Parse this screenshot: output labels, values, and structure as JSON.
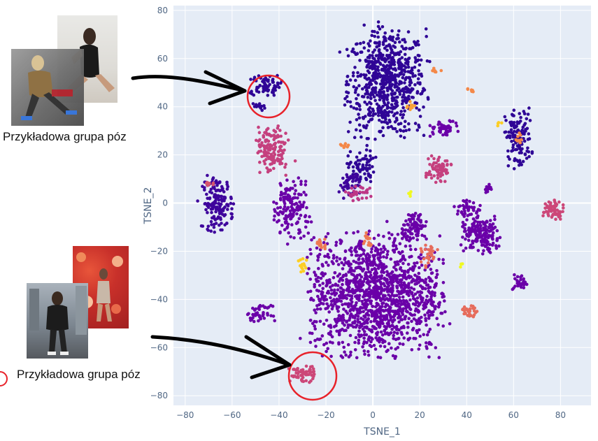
{
  "chart_data": {
    "type": "scatter",
    "title": "",
    "xlabel": "TSNE_1",
    "ylabel": "TSNE_2",
    "xlim": [
      -85,
      93
    ],
    "ylim": [
      -84,
      82
    ],
    "x_ticks": [
      -80,
      -60,
      -40,
      -20,
      0,
      20,
      40,
      60,
      80
    ],
    "y_ticks": [
      -80,
      -60,
      -40,
      -20,
      0,
      20,
      40,
      60,
      80
    ],
    "grid": true,
    "legend": "none",
    "palette": "plasma",
    "clusters": [
      {
        "cx": 6,
        "cy": 50,
        "rx": 15,
        "ry": 20,
        "n": 700,
        "color": "#2f0596"
      },
      {
        "cx": -46,
        "cy": 49,
        "rx": 6,
        "ry": 4,
        "n": 70,
        "color": "#2f0596"
      },
      {
        "cx": -49,
        "cy": 40,
        "rx": 3,
        "ry": 1.5,
        "n": 14,
        "color": "#2f0596"
      },
      {
        "cx": -5,
        "cy": 15,
        "rx": 5,
        "ry": 6,
        "n": 70,
        "color": "#2f0596"
      },
      {
        "cx": 62,
        "cy": 27,
        "rx": 5,
        "ry": 11,
        "n": 130,
        "color": "#2f0596"
      },
      {
        "cx": -66,
        "cy": 0,
        "rx": 6,
        "ry": 10,
        "n": 160,
        "color": "#3e049c"
      },
      {
        "cx": -10,
        "cy": 8,
        "rx": 4,
        "ry": 5,
        "n": 50,
        "color": "#3e049c"
      },
      {
        "cx": -35,
        "cy": -3,
        "rx": 7,
        "ry": 12,
        "n": 150,
        "color": "#6a00a8"
      },
      {
        "cx": 1,
        "cy": -38,
        "rx": 25,
        "ry": 22,
        "n": 1400,
        "color": "#6a00a8"
      },
      {
        "cx": 18,
        "cy": -10,
        "rx": 5,
        "ry": 5,
        "n": 90,
        "color": "#6a00a8"
      },
      {
        "cx": 46,
        "cy": -13,
        "rx": 8,
        "ry": 7,
        "n": 170,
        "color": "#6a00a8"
      },
      {
        "cx": 40,
        "cy": -2,
        "rx": 5,
        "ry": 3,
        "n": 40,
        "color": "#6a00a8"
      },
      {
        "cx": -48,
        "cy": -46,
        "rx": 5,
        "ry": 3,
        "n": 45,
        "color": "#6a00a8"
      },
      {
        "cx": 63,
        "cy": -33,
        "rx": 3,
        "ry": 3,
        "n": 30,
        "color": "#6a00a8"
      },
      {
        "cx": 30,
        "cy": 31,
        "rx": 6,
        "ry": 3,
        "n": 45,
        "color": "#6a00a8"
      },
      {
        "cx": 49,
        "cy": 6,
        "rx": 2,
        "ry": 2,
        "n": 12,
        "color": "#6a00a8"
      },
      {
        "cx": -43,
        "cy": 22,
        "rx": 6,
        "ry": 9,
        "n": 150,
        "color": "#c5407e"
      },
      {
        "cx": 28,
        "cy": 14,
        "rx": 5,
        "ry": 5,
        "n": 80,
        "color": "#c5407e"
      },
      {
        "cx": 77,
        "cy": -3,
        "rx": 4,
        "ry": 4,
        "n": 60,
        "color": "#cc4778"
      },
      {
        "cx": -30,
        "cy": -71,
        "rx": 5,
        "ry": 3,
        "n": 60,
        "color": "#cc4778"
      },
      {
        "cx": -6,
        "cy": 4,
        "rx": 5,
        "ry": 3,
        "n": 30,
        "color": "#bd3786"
      },
      {
        "cx": -70,
        "cy": 8,
        "rx": 2,
        "ry": 1,
        "n": 8,
        "color": "#d5546e"
      },
      {
        "cx": 24,
        "cy": -22,
        "rx": 3,
        "ry": 4,
        "n": 30,
        "color": "#e66c5c"
      },
      {
        "cx": 41,
        "cy": -45,
        "rx": 3,
        "ry": 2,
        "n": 30,
        "color": "#e66c5c"
      },
      {
        "cx": -22,
        "cy": -17,
        "rx": 3,
        "ry": 2,
        "n": 18,
        "color": "#ed7953"
      },
      {
        "cx": -2,
        "cy": -15,
        "rx": 2,
        "ry": 3,
        "n": 14,
        "color": "#ed7953"
      },
      {
        "cx": 27,
        "cy": 55,
        "rx": 2,
        "ry": 1,
        "n": 6,
        "color": "#f48849"
      },
      {
        "cx": 41,
        "cy": 47,
        "rx": 2,
        "ry": 1,
        "n": 6,
        "color": "#f48849"
      },
      {
        "cx": 63,
        "cy": 27,
        "rx": 2,
        "ry": 2,
        "n": 8,
        "color": "#f48849"
      },
      {
        "cx": -12,
        "cy": 24,
        "rx": 2,
        "ry": 1,
        "n": 8,
        "color": "#f48849"
      },
      {
        "cx": 16,
        "cy": 40,
        "rx": 2,
        "ry": 2,
        "n": 10,
        "color": "#fba238"
      },
      {
        "cx": -30,
        "cy": -26,
        "rx": 2,
        "ry": 3,
        "n": 14,
        "color": "#fcce25"
      },
      {
        "cx": 16,
        "cy": 4,
        "rx": 1,
        "ry": 1,
        "n": 4,
        "color": "#f0f921"
      },
      {
        "cx": 38,
        "cy": -26,
        "rx": 1,
        "ry": 1,
        "n": 4,
        "color": "#f0f921"
      },
      {
        "cx": 54,
        "cy": 33,
        "rx": 1,
        "ry": 1,
        "n": 4,
        "color": "#fcce25"
      }
    ]
  },
  "panels": [
    {
      "caption": "Przykładowa grupa póz"
    },
    {
      "caption": "Przykładowa grupa póz"
    }
  ],
  "colors": {
    "plot_bg": "#e5ecf6",
    "grid": "#ffffff",
    "highlight_circle": "#e8222a",
    "arrow": "#000000",
    "tick_text": "#506784"
  }
}
